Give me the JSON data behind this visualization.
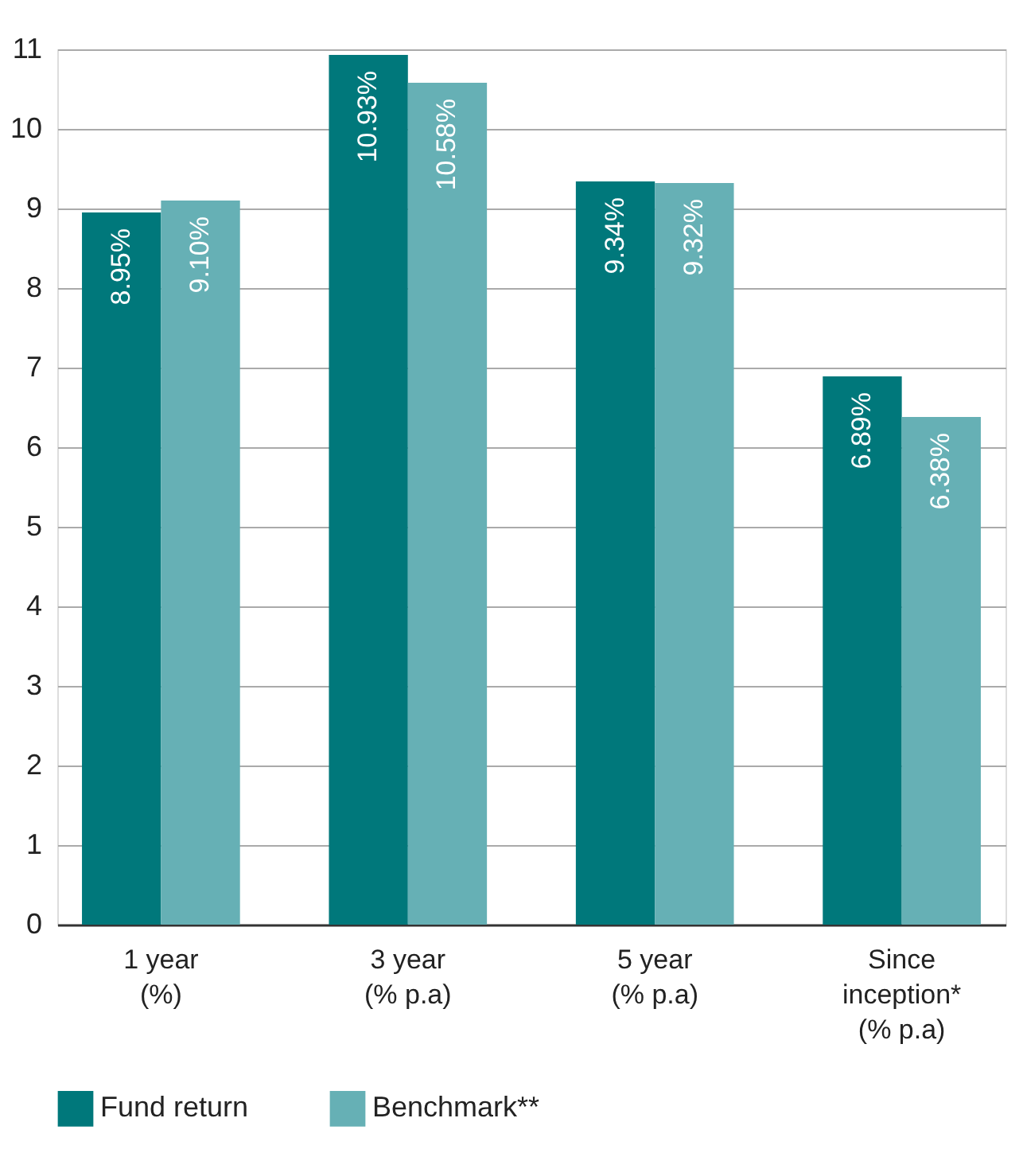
{
  "chart_data": {
    "type": "bar",
    "categories": [
      "1 year\n(%)",
      "3 year\n(% p.a)",
      "5 year\n(% p.a)",
      "Since\ninception*\n(% p.a)"
    ],
    "series": [
      {
        "name": "Fund return",
        "color": "#00787b",
        "values": [
          8.95,
          10.93,
          9.34,
          6.89
        ],
        "value_labels": [
          "8.95%",
          "10.93%",
          "9.34%",
          "6.89%"
        ]
      },
      {
        "name": "Benchmark**",
        "color": "#66b0b5",
        "values": [
          9.1,
          10.58,
          9.32,
          6.38
        ],
        "value_labels": [
          "9.10%",
          "10.58%",
          "9.32%",
          "6.38%"
        ]
      }
    ],
    "ylim": [
      0,
      11
    ],
    "yticks": [
      0,
      1,
      2,
      3,
      4,
      5,
      6,
      7,
      8,
      9,
      10,
      11
    ],
    "grid": "y",
    "legend": "bottom"
  }
}
